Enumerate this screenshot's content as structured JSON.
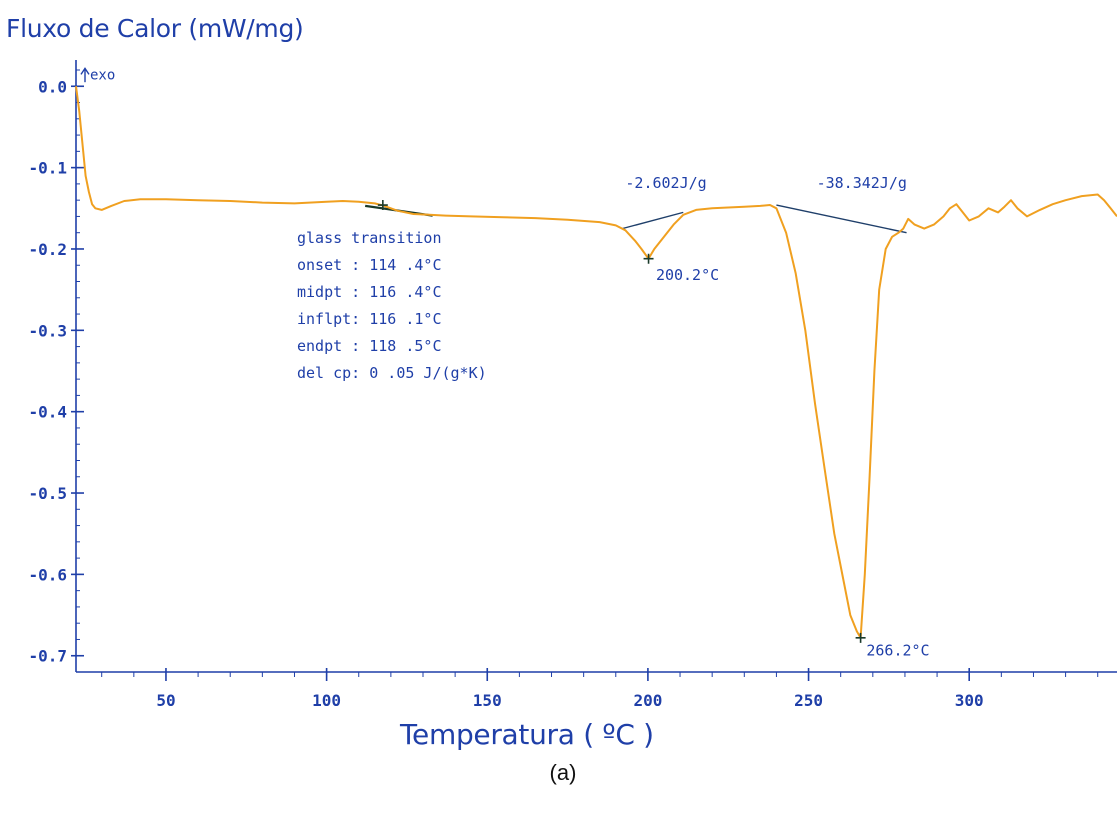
{
  "chart_data": {
    "type": "line",
    "ylabel": "Fluxo de Calor (mW/mg)",
    "xlabel": "Temperatura ( ºC )",
    "caption": "(a)",
    "exo_label": "exo",
    "xlim": [
      22,
      346
    ],
    "ylim": [
      -0.72,
      0.02
    ],
    "x_ticks": [
      50,
      100,
      150,
      200,
      250,
      300
    ],
    "y_ticks": [
      0.0,
      -0.1,
      -0.2,
      -0.3,
      -0.4,
      -0.5,
      -0.6,
      -0.7
    ],
    "y_tick_labels": [
      "0.0",
      "-0.1",
      "-0.2",
      "-0.3",
      "-0.4",
      "-0.5",
      "-0.6",
      "-0.7"
    ],
    "colors": {
      "curve": "#f0a020",
      "axis": "#1f3fa8",
      "text": "#1f3fa8",
      "baseline": "#1f3f6a",
      "gt_segment": "#1a3a2a"
    },
    "series": [
      {
        "x": [
          22,
          23,
          24,
          25,
          26,
          27,
          28,
          30,
          33,
          37,
          42,
          50,
          60,
          70,
          80,
          90,
          100,
          105,
          110,
          115,
          118,
          122,
          127,
          132,
          137,
          145,
          155,
          165,
          175,
          185,
          190,
          193,
          196,
          198,
          200.2,
          202,
          205,
          208,
          211,
          215,
          220,
          225,
          230,
          235,
          238,
          240,
          243,
          246,
          249,
          252,
          255,
          258,
          261,
          263,
          265,
          266.2,
          267.5,
          269,
          270.5,
          272,
          274,
          276,
          278,
          279.5,
          281,
          283,
          286,
          289,
          292,
          294,
          296,
          298,
          300,
          303,
          306,
          309,
          311,
          313,
          315,
          318,
          322,
          326,
          330,
          335,
          340,
          342,
          344,
          346
        ],
        "y": [
          0.0,
          -0.03,
          -0.07,
          -0.11,
          -0.13,
          -0.145,
          -0.15,
          -0.152,
          -0.147,
          -0.141,
          -0.139,
          -0.139,
          -0.14,
          -0.141,
          -0.143,
          -0.144,
          -0.142,
          -0.141,
          -0.142,
          -0.144,
          -0.147,
          -0.153,
          -0.157,
          -0.158,
          -0.159,
          -0.16,
          -0.161,
          -0.162,
          -0.164,
          -0.167,
          -0.171,
          -0.177,
          -0.19,
          -0.2,
          -0.212,
          -0.2,
          -0.185,
          -0.17,
          -0.158,
          -0.152,
          -0.15,
          -0.149,
          -0.148,
          -0.147,
          -0.146,
          -0.15,
          -0.18,
          -0.23,
          -0.3,
          -0.39,
          -0.47,
          -0.55,
          -0.61,
          -0.65,
          -0.67,
          -0.678,
          -0.6,
          -0.48,
          -0.35,
          -0.25,
          -0.2,
          -0.185,
          -0.18,
          -0.175,
          -0.163,
          -0.17,
          -0.175,
          -0.17,
          -0.16,
          -0.15,
          -0.145,
          -0.155,
          -0.165,
          -0.16,
          -0.15,
          -0.155,
          -0.148,
          -0.14,
          -0.15,
          -0.16,
          -0.152,
          -0.145,
          -0.14,
          -0.135,
          -0.133,
          -0.14,
          -0.15,
          -0.16
        ]
      }
    ],
    "markers": [
      {
        "x": 117.5,
        "y": -0.146
      },
      {
        "x": 200.2,
        "y": -0.212
      },
      {
        "x": 266.2,
        "y": -0.678
      }
    ],
    "peak_baselines": [
      {
        "x1": 192,
        "y1": -0.175,
        "x2": 211,
        "y2": -0.155
      },
      {
        "x1": 240,
        "y1": -0.146,
        "x2": 280.5,
        "y2": -0.18
      }
    ],
    "glass_transition_segment": {
      "x1": 112,
      "y1": -0.147,
      "x2": 133,
      "y2": -0.159
    },
    "annotations": {
      "peak1_energy": "-2.602J/g",
      "peak1_temp": "200.2°C",
      "peak2_energy": "-38.342J/g",
      "peak2_temp": "266.2°C",
      "glass_transition": [
        "glass transition",
        "onset :  114 .4°C",
        "midpt :  116 .4°C",
        "inflpt:  116 .1°C",
        "endpt :  118 .5°C",
        "del cp:     0 .05 J/(g*K)"
      ]
    }
  }
}
